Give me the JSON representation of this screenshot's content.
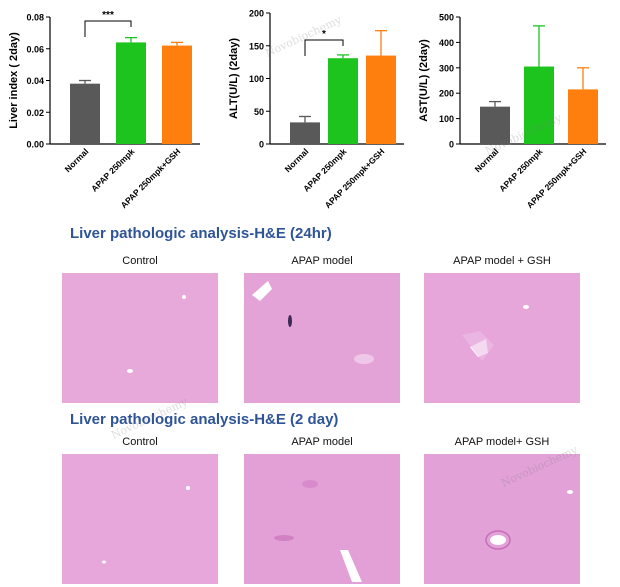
{
  "chart_data": [
    {
      "type": "bar",
      "categories": [
        "Normal",
        "APAP 250mpk",
        "APAP 250mpk+GSH"
      ],
      "values": [
        0.038,
        0.064,
        0.062
      ],
      "errors": [
        0.002,
        0.003,
        0.002
      ],
      "ylabel": "Liver index ( 2day)",
      "ylim": [
        0,
        0.08
      ],
      "yticks": [
        "0.00",
        "0.02",
        "0.04",
        "0.06",
        "0.08"
      ],
      "bar_colors": [
        "#595959",
        "#1ec41e",
        "#ff7f0e"
      ],
      "significance": {
        "from": 0,
        "to": 1,
        "label": "***"
      }
    },
    {
      "type": "bar",
      "categories": [
        "Normal",
        "APAP 250mpk",
        "APAP 250mpk+GSH"
      ],
      "values": [
        33,
        131,
        135
      ],
      "errors": [
        9,
        5,
        38
      ],
      "ylabel": "ALT(U/L) (2day)",
      "ylim": [
        0,
        200
      ],
      "yticks": [
        "0",
        "50",
        "100",
        "150",
        "200"
      ],
      "bar_colors": [
        "#595959",
        "#1ec41e",
        "#ff7f0e"
      ],
      "significance": {
        "from": 0,
        "to": 1,
        "label": "*"
      }
    },
    {
      "type": "bar",
      "categories": [
        "Normal",
        "APAP 250mpk",
        "APAP 250mpk+GSH"
      ],
      "values": [
        147,
        305,
        215
      ],
      "errors": [
        20,
        160,
        85
      ],
      "ylabel": "AST(U/L) (2day)",
      "ylim": [
        0,
        500
      ],
      "yticks": [
        "0",
        "100",
        "200",
        "300",
        "400",
        "500"
      ],
      "bar_colors": [
        "#595959",
        "#1ec41e",
        "#ff7f0e"
      ]
    }
  ],
  "section_24hr": {
    "title": "Liver pathologic analysis-H&E (24hr)",
    "captions": [
      "Control",
      "APAP model",
      "APAP model + GSH"
    ]
  },
  "section_2day": {
    "title": "Liver pathologic analysis-H&E (2 day)",
    "captions": [
      "Control",
      "APAP model",
      "APAP model+ GSH"
    ]
  },
  "tissue_color": "#e6a7d9",
  "watermark": "Novobiochemy"
}
